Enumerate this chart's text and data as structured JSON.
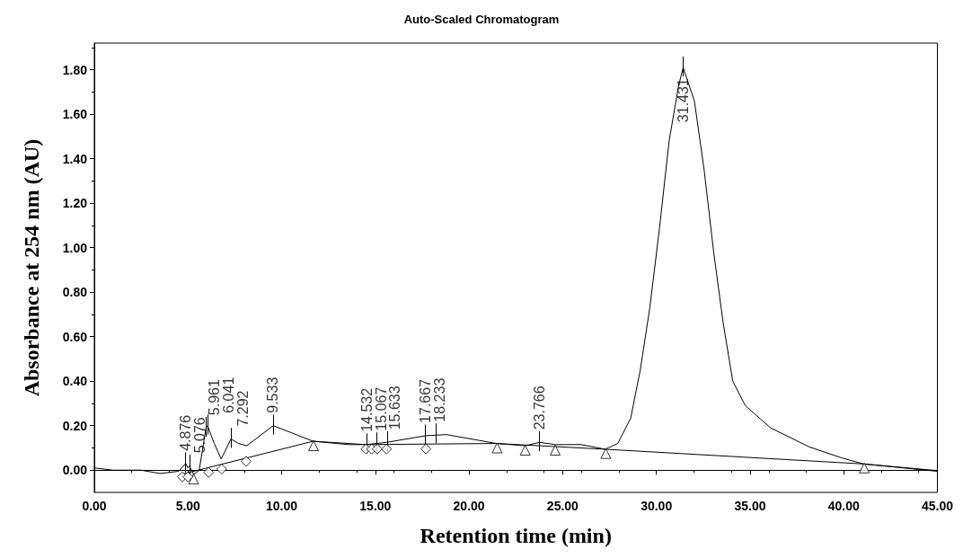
{
  "chart_data": {
    "type": "line",
    "title": "Auto-Scaled Chromatogram",
    "xlabel": "Retention time (min)",
    "ylabel": "Absorbance at 254 nm (AU)",
    "series": [
      {
        "color": "#000000",
        "x": [
          0,
          1,
          2.5,
          3.5,
          4.5,
          4.876,
          5.0,
          5.076,
          5.3,
          5.6,
          5.961,
          6.041,
          6.4,
          6.77,
          7.292,
          7.7,
          8.14,
          9.55,
          11.68,
          13.59,
          14.5,
          15.6,
          17.7,
          18.8,
          21.45,
          23.0,
          23.766,
          24.6,
          26.0,
          27.27,
          27.94,
          28.63,
          29.14,
          29.65,
          30.17,
          30.68,
          31.19,
          31.43,
          32.03,
          32.55,
          33.06,
          33.57,
          34.08,
          34.75,
          36.1,
          38.15,
          39.86,
          41.05,
          45
        ],
        "values": [
          0.01,
          0.0,
          0.0,
          -0.015,
          -0.005,
          0.03,
          0.01,
          0.02,
          -0.02,
          0.0,
          0.19,
          0.2,
          0.12,
          0.05,
          0.14,
          0.12,
          0.11,
          0.2,
          0.13,
          0.115,
          0.115,
          0.125,
          0.155,
          0.16,
          0.12,
          0.11,
          0.125,
          0.115,
          0.115,
          0.094,
          0.12,
          0.234,
          0.45,
          0.73,
          1.09,
          1.48,
          1.73,
          1.81,
          1.66,
          1.35,
          0.98,
          0.66,
          0.4,
          0.29,
          0.19,
          0.105,
          0.056,
          0.028,
          -0.002
        ]
      },
      {
        "color": "#000000",
        "x": [
          4.6,
          11.68,
          14.5,
          21.45,
          27.27,
          41.05,
          45
        ],
        "values": [
          -0.02,
          0.13,
          0.115,
          0.12,
          0.094,
          0.028,
          -0.005
        ]
      },
      {
        "type": "scatter",
        "marker": "triangle",
        "color": "#000000",
        "x": [
          5.3,
          11.7,
          21.5,
          23.0,
          24.6,
          27.3,
          41.1
        ],
        "values": [
          -0.04,
          0.11,
          0.1,
          0.09,
          0.09,
          0.075,
          0.01
        ]
      },
      {
        "type": "scatter",
        "marker": "diamond",
        "color": "#000000",
        "x": [
          4.7,
          5.0,
          6.1,
          6.8,
          8.1,
          14.5,
          14.8,
          15.1,
          15.6,
          17.7
        ],
        "values": [
          -0.03,
          -0.03,
          -0.01,
          0.005,
          0.04,
          0.095,
          0.095,
          0.095,
          0.095,
          0.095
        ]
      }
    ],
    "annotations": [
      {
        "text": "4.876",
        "x": 4.876,
        "y": 0.03
      },
      {
        "text": "5.076",
        "x": 5.076,
        "y": 0.02
      },
      {
        "text": "5.961",
        "x": 5.961,
        "y": 0.19
      },
      {
        "text": "6.041",
        "x": 6.041,
        "y": 0.2
      },
      {
        "text": "7.292",
        "x": 7.292,
        "y": 0.14
      },
      {
        "text": "9.533",
        "x": 9.533,
        "y": 0.2
      },
      {
        "text": "14.532",
        "x": 14.532,
        "y": 0.115
      },
      {
        "text": "15.067",
        "x": 15.067,
        "y": 0.12
      },
      {
        "text": "15.633",
        "x": 15.633,
        "y": 0.125
      },
      {
        "text": "17.667",
        "x": 17.667,
        "y": 0.155
      },
      {
        "text": "18.233",
        "x": 18.233,
        "y": 0.16
      },
      {
        "text": "23.766",
        "x": 23.766,
        "y": 0.125
      },
      {
        "text": "31.431",
        "x": 31.431,
        "y": 1.81
      }
    ],
    "xlim": [
      0,
      45
    ],
    "xticks": [
      {
        "value": 0,
        "label": "0.00"
      },
      {
        "value": 5,
        "label": "5.00"
      },
      {
        "value": 10,
        "label": "10.00"
      },
      {
        "value": 15,
        "label": "15.00"
      },
      {
        "value": 20,
        "label": "20.00"
      },
      {
        "value": 25,
        "label": "25.00"
      },
      {
        "value": 30,
        "label": "30.00"
      },
      {
        "value": 35,
        "label": "35.00"
      },
      {
        "value": 40,
        "label": "40.00"
      },
      {
        "value": 45,
        "label": "45.00"
      }
    ],
    "ylim": [
      -0.1,
      1.92
    ],
    "yticks": [
      {
        "value": 0,
        "label": "0.00"
      },
      {
        "value": 0.2,
        "label": "0.20"
      },
      {
        "value": 0.4,
        "label": "0.40"
      },
      {
        "value": 0.6,
        "label": "0.60"
      },
      {
        "value": 0.8,
        "label": "0.80"
      },
      {
        "value": 1,
        "label": "1.00"
      },
      {
        "value": 1.2,
        "label": "1.20"
      },
      {
        "value": 1.4,
        "label": "1.40"
      },
      {
        "value": 1.6,
        "label": "1.60"
      },
      {
        "value": 1.8,
        "label": "1.80"
      }
    ],
    "marker": "none",
    "line_style": "solid"
  }
}
